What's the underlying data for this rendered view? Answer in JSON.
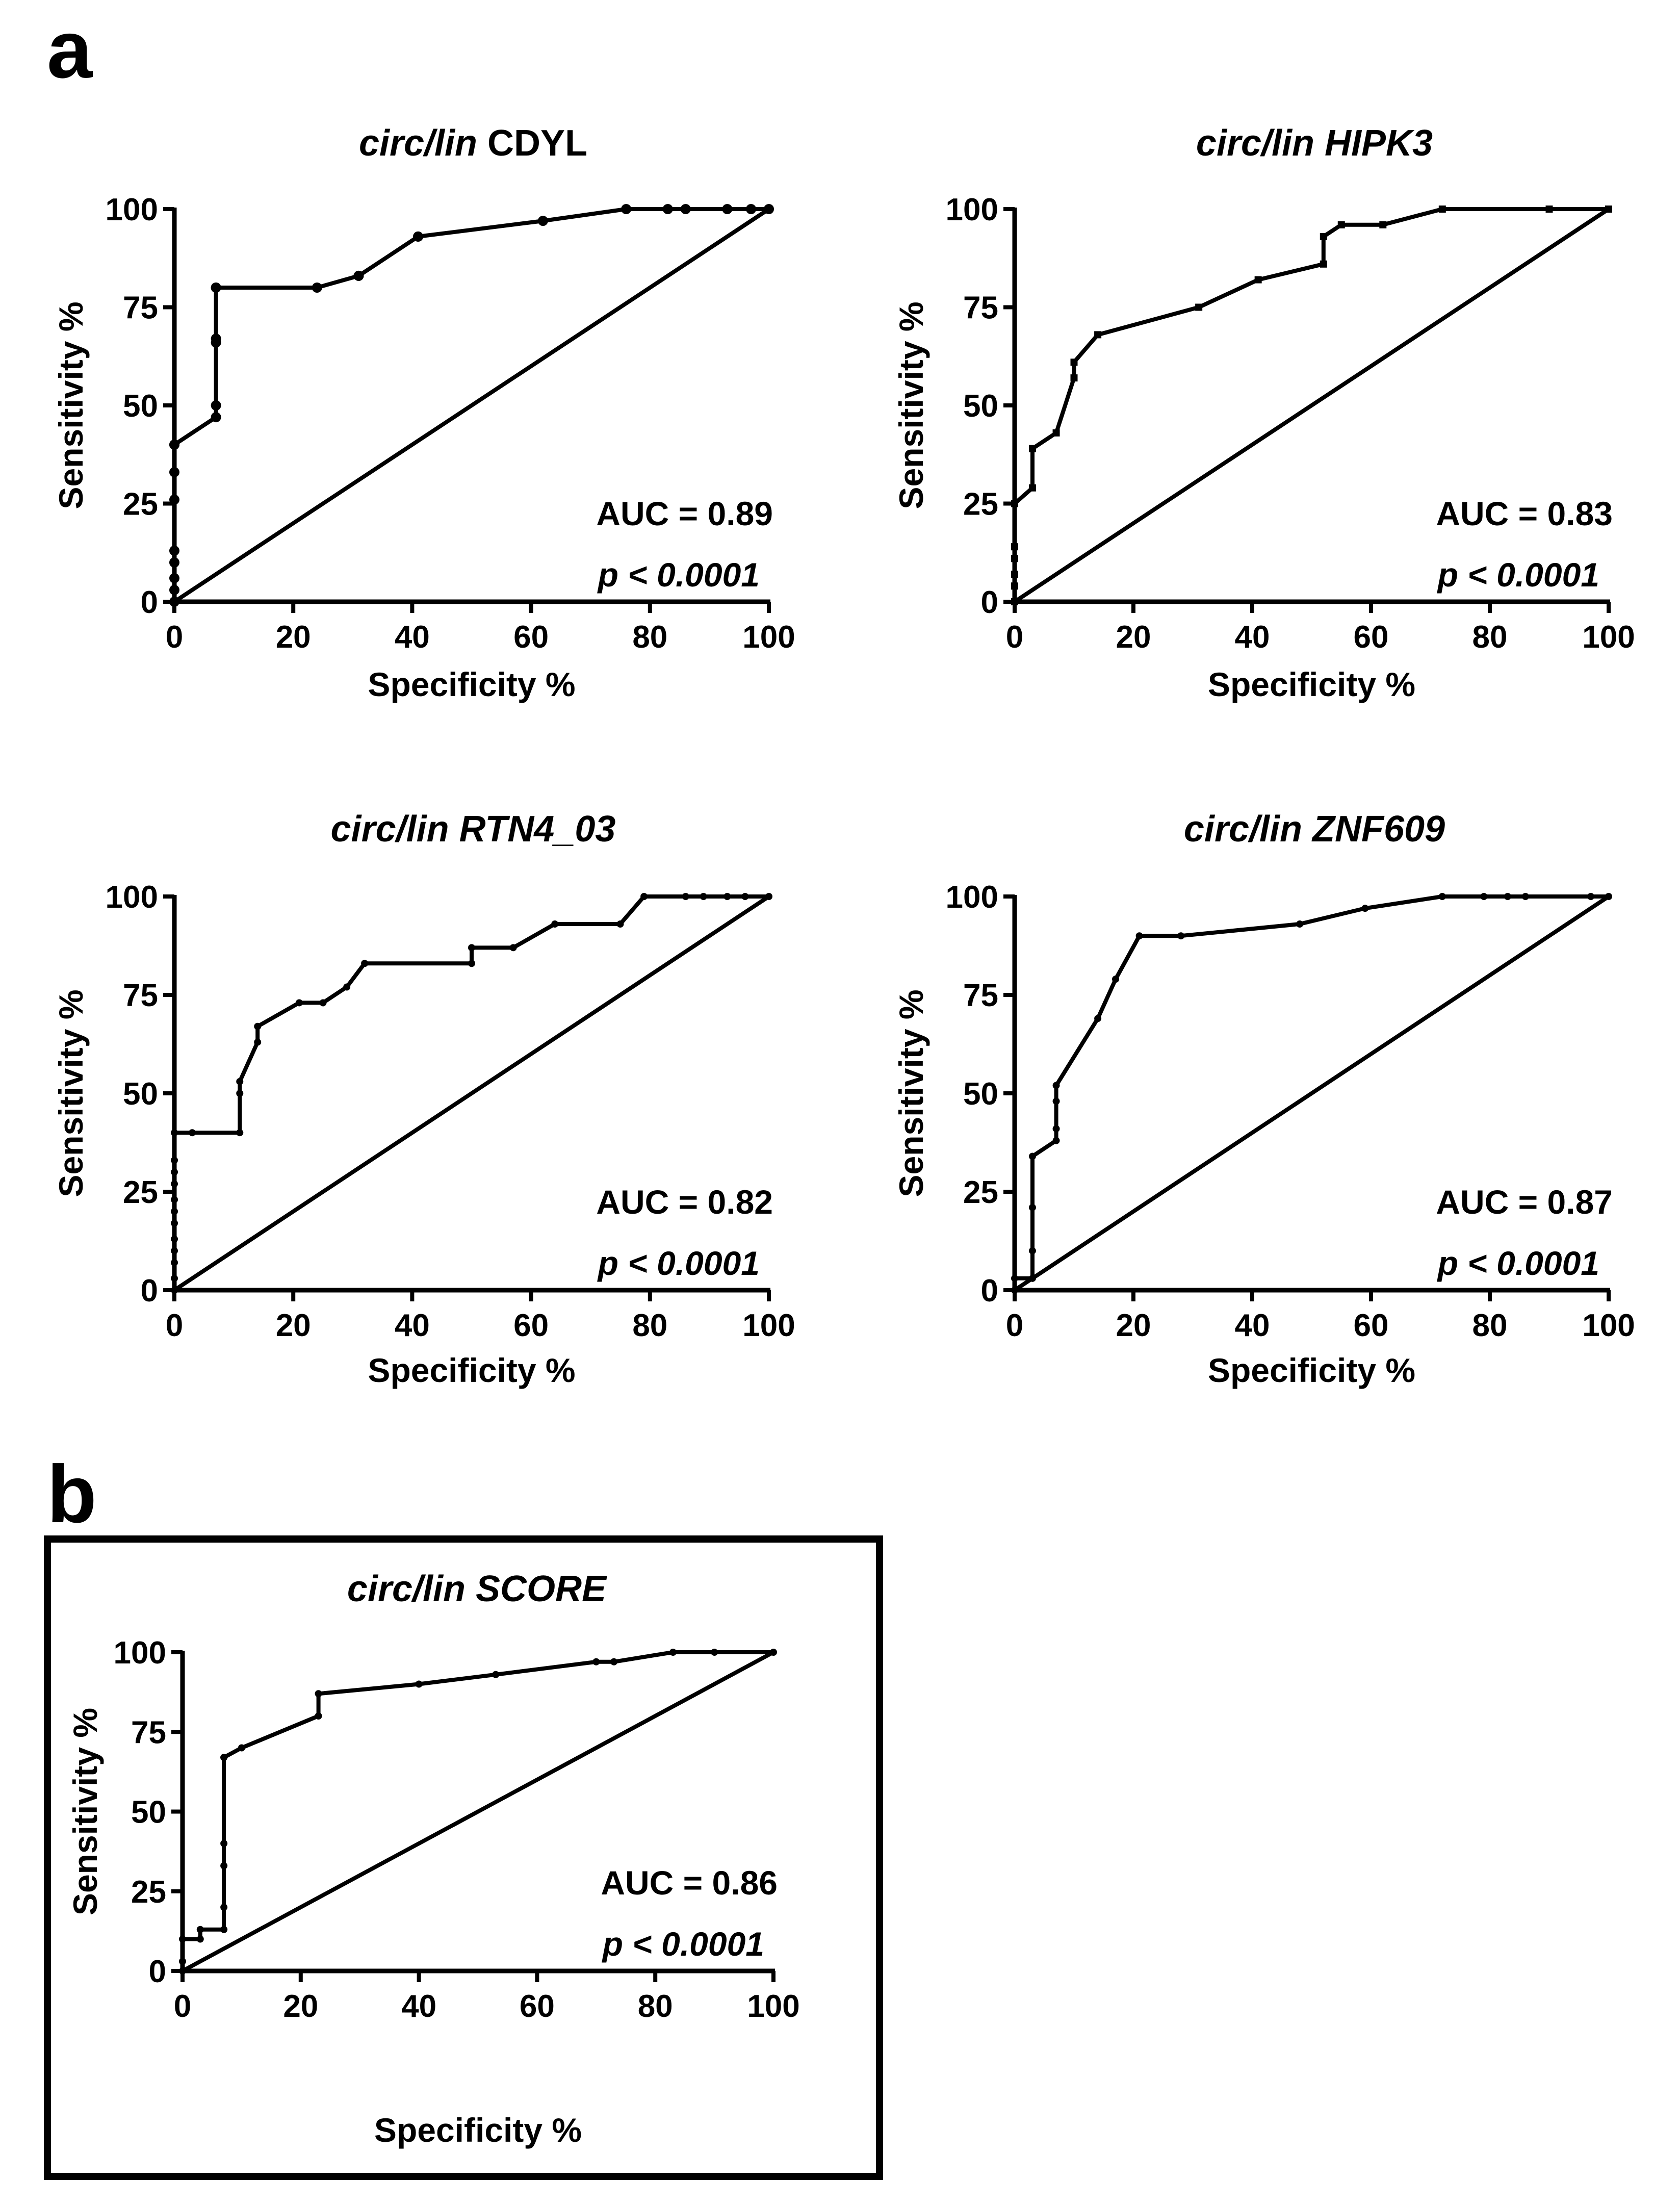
{
  "figure": {
    "panel_a_label": "a",
    "panel_b_label": "b"
  },
  "chart_data": [
    {
      "id": "cdyl",
      "type": "line",
      "panel": "a",
      "title_italic": "circ/lin",
      "title_rest": " CDYL",
      "rest_italic": false,
      "xlabel": "Specificity %",
      "ylabel": "Sensitivity %",
      "xlim": [
        0,
        100
      ],
      "ylim": [
        0,
        100
      ],
      "xticks": [
        "0",
        "20",
        "40",
        "60",
        "80",
        "100"
      ],
      "yticks": [
        "0",
        "25",
        "50",
        "75",
        "100"
      ],
      "auc_text": "AUC = 0.89",
      "p_text": "p < 0.0001",
      "marker": "circle",
      "roc": {
        "x": [
          0,
          0,
          0,
          0,
          0,
          0,
          0,
          0,
          0,
          7,
          7,
          7,
          7,
          7,
          7,
          24,
          31,
          31,
          41,
          41,
          62,
          76,
          83,
          86,
          93,
          97,
          100
        ],
        "y": [
          0,
          3,
          6,
          10,
          13,
          26,
          33,
          40,
          40,
          47,
          50,
          66,
          67,
          80,
          80,
          80,
          83,
          83,
          93,
          93,
          97,
          100,
          100,
          100,
          100,
          100,
          100
        ]
      },
      "reference": {
        "x": [
          0,
          100
        ],
        "y": [
          0,
          100
        ]
      }
    },
    {
      "id": "hipk3",
      "type": "line",
      "panel": "a",
      "title_italic": "circ/lin",
      "title_rest": " HIPK3",
      "rest_italic": true,
      "xlabel": "Specificity %",
      "ylabel": "Sensitivity %",
      "xlim": [
        0,
        100
      ],
      "ylim": [
        0,
        100
      ],
      "xticks": [
        "0",
        "20",
        "40",
        "60",
        "80",
        "100"
      ],
      "yticks": [
        "0",
        "25",
        "50",
        "75",
        "100"
      ],
      "auc_text": "AUC = 0.83",
      "p_text": "p < 0.0001",
      "marker": "square",
      "roc": {
        "x": [
          0,
          0,
          0,
          0,
          0,
          0,
          0,
          3,
          3,
          7,
          10,
          10,
          14,
          31,
          41,
          52,
          52,
          55,
          62,
          72,
          90,
          100
        ],
        "y": [
          0,
          4,
          7,
          11,
          14,
          25,
          25,
          29,
          39,
          43,
          57,
          61,
          68,
          75,
          82,
          86,
          93,
          96,
          96,
          100,
          100,
          100
        ]
      },
      "reference": {
        "x": [
          0,
          100
        ],
        "y": [
          0,
          100
        ]
      }
    },
    {
      "id": "rtn4",
      "type": "line",
      "panel": "a",
      "title_italic": "circ/lin",
      "title_rest": " RTN4_03",
      "rest_italic": true,
      "xlabel": "Specificity %",
      "ylabel": "Sensitivity %",
      "xlim": [
        0,
        100
      ],
      "ylim": [
        0,
        100
      ],
      "xticks": [
        "0",
        "20",
        "40",
        "60",
        "80",
        "100"
      ],
      "yticks": [
        "0",
        "25",
        "50",
        "75",
        "100"
      ],
      "auc_text": "AUC = 0.82",
      "p_text": "p < 0.0001",
      "marker": "dot",
      "roc": {
        "x": [
          0,
          0,
          0,
          0,
          0,
          0,
          0,
          0,
          0,
          0,
          0,
          0,
          3,
          11,
          11,
          11,
          14,
          14,
          21,
          25,
          29,
          32,
          50,
          50,
          57,
          64,
          75,
          79,
          86,
          89,
          93,
          96,
          100
        ],
        "y": [
          0,
          3,
          7,
          10,
          13,
          17,
          20,
          23,
          27,
          30,
          33,
          40,
          40,
          40,
          50,
          53,
          63,
          67,
          73,
          73,
          77,
          83,
          83,
          87,
          87,
          93,
          93,
          100,
          100,
          100,
          100,
          100,
          100
        ]
      },
      "reference": {
        "x": [
          0,
          100
        ],
        "y": [
          0,
          100
        ]
      }
    },
    {
      "id": "znf609",
      "type": "line",
      "panel": "a",
      "title_italic": "circ/lin",
      "title_rest": " ZNF609",
      "rest_italic": true,
      "xlabel": "Specificity %",
      "ylabel": "Sensitivity %",
      "xlim": [
        0,
        100
      ],
      "ylim": [
        0,
        100
      ],
      "xticks": [
        "0",
        "20",
        "40",
        "60",
        "80",
        "100"
      ],
      "yticks": [
        "0",
        "25",
        "50",
        "75",
        "100"
      ],
      "auc_text": "AUC = 0.87",
      "p_text": "p < 0.0001",
      "marker": "dot",
      "roc": {
        "x": [
          0,
          0,
          3,
          3,
          3,
          3,
          7,
          7,
          7,
          7,
          14,
          17,
          21,
          28,
          48,
          59,
          72,
          79,
          83,
          86,
          97,
          100
        ],
        "y": [
          0,
          3,
          3,
          10,
          21,
          34,
          38,
          41,
          48,
          52,
          69,
          79,
          90,
          90,
          93,
          97,
          100,
          100,
          100,
          100,
          100,
          100
        ]
      },
      "reference": {
        "x": [
          0,
          100
        ],
        "y": [
          0,
          100
        ]
      }
    },
    {
      "id": "score",
      "type": "line",
      "panel": "b",
      "title_italic": "circ/lin SCORE",
      "title_rest": "",
      "rest_italic": true,
      "xlabel": "Specificity %",
      "ylabel": "Sensitivity %",
      "xlim": [
        0,
        100
      ],
      "ylim": [
        0,
        100
      ],
      "xticks": [
        "0",
        "20",
        "40",
        "60",
        "80",
        "100"
      ],
      "yticks": [
        "0",
        "25",
        "50",
        "75",
        "100"
      ],
      "auc_text": "AUC = 0.86",
      "p_text": "p < 0.0001",
      "marker": "dot",
      "roc": {
        "x": [
          0,
          0,
          0,
          3,
          3,
          7,
          7,
          7,
          7,
          7,
          7,
          10,
          23,
          23,
          40,
          53,
          70,
          73,
          83,
          90,
          100
        ],
        "y": [
          0,
          3,
          10,
          10,
          13,
          13,
          20,
          33,
          40,
          67,
          67,
          70,
          80,
          87,
          90,
          93,
          97,
          97,
          100,
          100,
          100
        ]
      },
      "reference": {
        "x": [
          0,
          100
        ],
        "y": [
          0,
          100
        ]
      }
    }
  ]
}
